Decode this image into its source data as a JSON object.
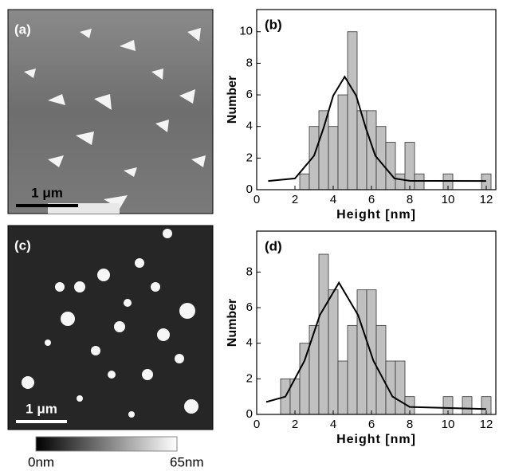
{
  "images": [
    {
      "label": "(a)",
      "scale_bar": "1 μm"
    },
    {
      "label": "(c)",
      "scale_bar": "1 μm"
    }
  ],
  "colorbar": {
    "min_label": "0nm",
    "max_label": "65nm"
  },
  "chart_data": [
    {
      "type": "histogram",
      "label": "(b)",
      "x_label": "Height [nm]",
      "y_label": "Number",
      "color": "#c0c0c0",
      "bins": [
        2.25,
        2.75,
        3.25,
        3.75,
        4.25,
        4.75,
        5.25,
        5.75,
        6.25,
        6.75,
        7.25,
        7.75,
        8.25,
        8.75,
        9.25,
        9.75,
        10.25,
        10.75,
        11.25,
        11.75,
        12.25
      ],
      "values": [
        1,
        4,
        5,
        4,
        6,
        10,
        5,
        5,
        4,
        3,
        1,
        3,
        1,
        0,
        0,
        1,
        0,
        0,
        0,
        1
      ],
      "fit": {
        "color": "#000000",
        "x": [
          0.6,
          2,
          3,
          3.5,
          4,
          4.6,
          5.2,
          5.7,
          6.2,
          7.2,
          8,
          12
        ],
        "y": [
          0.55,
          0.71,
          2.15,
          3.92,
          5.95,
          7.15,
          5.95,
          3.92,
          2.15,
          0.71,
          0.56,
          0.55
        ]
      },
      "xlim": [
        0,
        12.5
      ],
      "ylim": [
        0,
        11.4
      ],
      "xticks": [
        0,
        2,
        4,
        6,
        8,
        10,
        12
      ],
      "yticks": [
        0,
        2,
        4,
        6,
        8,
        10
      ]
    },
    {
      "type": "histogram",
      "label": "(d)",
      "x_label": "Height [nm]",
      "y_label": "Number",
      "color": "#c0c0c0",
      "bins": [
        1.25,
        1.75,
        2.25,
        2.75,
        3.25,
        3.75,
        4.25,
        4.75,
        5.25,
        5.75,
        6.25,
        6.75,
        7.25,
        7.75,
        8.25,
        8.75,
        9.25,
        9.75,
        10.25,
        10.75,
        11.25,
        11.75,
        12.25
      ],
      "values": [
        2,
        2,
        4,
        5,
        9,
        7,
        3,
        5,
        7,
        7,
        5,
        3,
        3,
        1,
        0,
        0,
        0,
        1,
        0,
        1,
        0,
        1
      ],
      "fit": {
        "color": "#000000",
        "x": [
          0.5,
          1.5,
          2.5,
          3.3,
          4.3,
          5.3,
          6.1,
          7.1,
          8,
          12
        ],
        "y": [
          0.7,
          1.0,
          3.02,
          5.58,
          7.4,
          5.58,
          3.02,
          1.0,
          0.42,
          0.3
        ]
      },
      "xlim": [
        0,
        12.5
      ],
      "ylim": [
        0,
        10.3
      ],
      "xticks": [
        0,
        2,
        4,
        6,
        8,
        10,
        12
      ],
      "yticks": [
        0,
        2,
        4,
        6,
        8
      ]
    }
  ]
}
